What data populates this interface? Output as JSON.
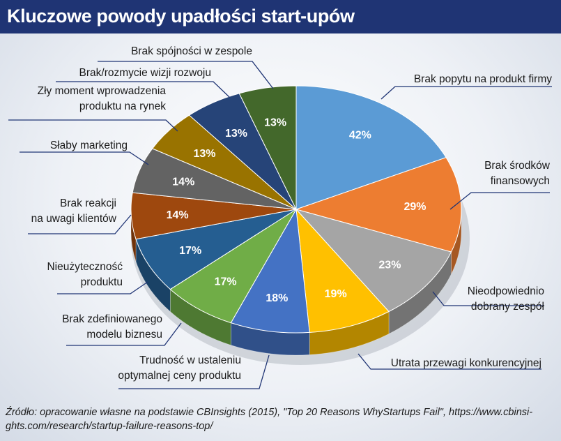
{
  "title": "Kluczowe powody upadłości start-upów",
  "source": "Źródło: opracowanie własne na podstawie CBInsights (2015), \"Top 20 Reasons WhyStartups Fail\", https://www.cbinsi-ghts.com/research/startup-failure-reasons-top/",
  "chart_data": {
    "type": "pie",
    "unit": "%",
    "categories": [
      "Brak popytu na produkt firmy",
      "Brak środków finansowych",
      "Nieodpowiednio dobrany zespół",
      "Utrata przewagi konkurencyjnej",
      "Trudność w ustaleniu optymalnej ceny produktu",
      "Brak zdefiniowanego modelu biznesu",
      "Nieużyteczność produktu",
      "Brak reakcji na uwagi klientów",
      "Słaby marketing",
      "Zły moment wprowadzenia produktu na rynek",
      "Brak/rozmycie wizji rozwoju",
      "Brak spójności w zespole"
    ],
    "values": [
      42,
      29,
      23,
      19,
      18,
      17,
      17,
      14,
      14,
      13,
      13,
      13
    ],
    "labels": [
      "42%",
      "29%",
      "23%",
      "19%",
      "18%",
      "17%",
      "17%",
      "14%",
      "14%",
      "13%",
      "13%",
      "13%"
    ],
    "label_lines": [
      [
        "Brak popytu na produkt firmy"
      ],
      [
        "Brak środków",
        "finansowych"
      ],
      [
        "Nieodpowiednio",
        "dobrany zespół"
      ],
      [
        "Utrata przewagi konkurencyjnej"
      ],
      [
        "Trudność w ustaleniu",
        "optymalnej ceny produktu"
      ],
      [
        "Brak zdefiniowanego",
        "modelu biznesu"
      ],
      [
        "Nieużyteczność",
        "produktu"
      ],
      [
        "Brak reakcji",
        "na uwagi klientów"
      ],
      [
        "Słaby marketing"
      ],
      [
        "Zły moment wprowadzenia",
        "produktu na rynek"
      ],
      [
        "Brak/rozmycie wizji rozwoju"
      ],
      [
        "Brak spójności w zespole"
      ]
    ],
    "colors": [
      "#5b9bd5",
      "#ed7d31",
      "#a5a5a5",
      "#ffc000",
      "#4472c4",
      "#70ad47",
      "#255e91",
      "#9e480e",
      "#636363",
      "#997300",
      "#264478",
      "#43682b"
    ],
    "legend": "none",
    "style": "3d"
  }
}
